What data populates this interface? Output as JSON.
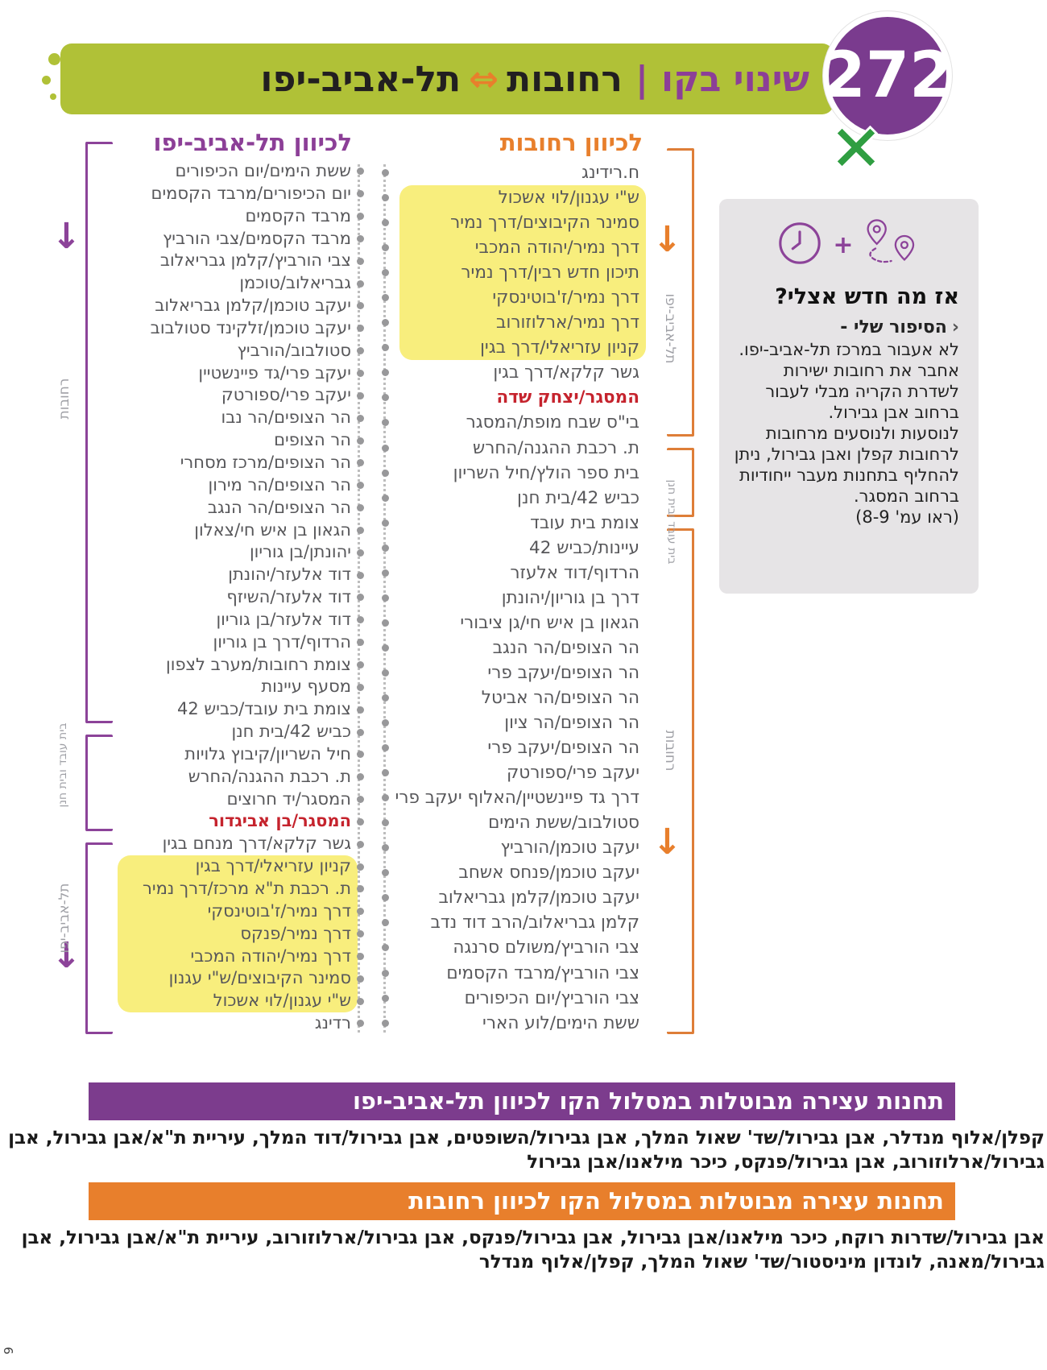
{
  "badge": {
    "line_number": "272"
  },
  "header": {
    "change_label": "שינוי בקו",
    "pipe": "|",
    "route_from": "רחובות",
    "arrow": "⇔",
    "route_to": "תל-אביב-יפו"
  },
  "columns": {
    "to_telaviv": {
      "title": "לכיוון תל-אביב-יפו",
      "stops": [
        {
          "name": "ששת הימים/יום הכיפורים"
        },
        {
          "name": "יום הכיפורים/מרבד הקסמים"
        },
        {
          "name": "מרבד הקסמים"
        },
        {
          "name": "מרבד הקסמים/צבי הורביץ"
        },
        {
          "name": "צבי הורביץ/קלמן גבריאלוב"
        },
        {
          "name": "גבריאלוב/טוכמן"
        },
        {
          "name": "יעקב טוכמן/קלמן גבריאלוב"
        },
        {
          "name": "יעקב טוכמן/זלקינד סטולבוב"
        },
        {
          "name": "סטולבוב/הורביץ"
        },
        {
          "name": "יעקב פרי/גד פיינשטיין"
        },
        {
          "name": "יעקב פרי/ספורטק"
        },
        {
          "name": "הר הצופים/הר נבו"
        },
        {
          "name": "הר הצופים"
        },
        {
          "name": "הר הצופים/מרכז מסחרי"
        },
        {
          "name": "הר הצופים/הר מירון"
        },
        {
          "name": "הר הצופים/הר הנגב"
        },
        {
          "name": "הגאון בן איש חי/צאלון"
        },
        {
          "name": "יהונתן/בן גוריון"
        },
        {
          "name": "דוד אלעזר/יהונתן"
        },
        {
          "name": "דוד אלעזר/השיזף"
        },
        {
          "name": "דוד אלעזר/בן גוריון"
        },
        {
          "name": "הרדוף/דרך בן גוריון"
        },
        {
          "name": "צומת רחובות/מערב לצפון"
        },
        {
          "name": "מסעף עיינות"
        },
        {
          "name": "צומת בית עובד/כביש 42"
        },
        {
          "name": "כביש 42/בית חנן"
        },
        {
          "name": "חיל השריון/קיבוץ גלויות"
        },
        {
          "name": "ת. רכבת ההגנה/החרש"
        },
        {
          "name": "המסגר/יד חרוצים"
        },
        {
          "name": "המסגר/בן אביגדור",
          "red": true
        },
        {
          "name": "גשר קלקא/דרך מנחם בגין"
        },
        {
          "name": "קניון עזריאלי/דרך בגין",
          "hl": true
        },
        {
          "name": "ת. רכבת ת\"א מרכז/דרך נמיר",
          "hl": true
        },
        {
          "name": "דרך נמיר/ז'בוטינסקי",
          "hl": true
        },
        {
          "name": "דרך נמיר/פנקס",
          "hl": true
        },
        {
          "name": "דרך נמיר/יהודה המכבי",
          "hl": true
        },
        {
          "name": "סמינר הקיבוצים/ש\"י עגנון",
          "hl": true
        },
        {
          "name": "ש\"י עגנון/לוי אשכול",
          "hl": true
        },
        {
          "name": "רדינג"
        }
      ]
    },
    "to_rehovot": {
      "title": "לכיוון רחובות",
      "stops": [
        {
          "name": "ח.רידינג"
        },
        {
          "name": "ש\"י עגנון/לוי אשכול",
          "hl": true
        },
        {
          "name": "סמינר הקיבוצים/דרך נמיר",
          "hl": true
        },
        {
          "name": "דרך נמיר/יהודה המכבי",
          "hl": true
        },
        {
          "name": "תיכון חדש רבין/דרך נמיר",
          "hl": true
        },
        {
          "name": "דרך נמיר/ז'בוטינסקי",
          "hl": true
        },
        {
          "name": "דרך נמיר/ארלוזורוב",
          "hl": true
        },
        {
          "name": "קניון עזריאלי/דרך בגין",
          "hl": true
        },
        {
          "name": "גשר קלקא/דרך בגין"
        },
        {
          "name": "המסגר/יצחק שדה",
          "red": true
        },
        {
          "name": "בי\"ס שבח מופת/המסגר"
        },
        {
          "name": "ת. רכבת ההגנה/החרש"
        },
        {
          "name": "בית ספר הולץ/חיל השריון"
        },
        {
          "name": "כביש 42/בית חנן"
        },
        {
          "name": "צומת בית עובד"
        },
        {
          "name": "עיינות/כביש 42"
        },
        {
          "name": "הרדוף/דוד אלעזר"
        },
        {
          "name": "דרך בן גוריון/יהונתן"
        },
        {
          "name": "הגאון בן איש חי/גן ציבורי"
        },
        {
          "name": "הר הצופים/הר הנגב"
        },
        {
          "name": "הר הצופים/יעקב פרי"
        },
        {
          "name": "הר הצופים/הר אביטל"
        },
        {
          "name": "הר הצופים/הר ציון"
        },
        {
          "name": "הר הצופים/יעקב פרי"
        },
        {
          "name": "יעקב פרי/ספורטק"
        },
        {
          "name": "דרך גד פיינשטיין/האלוף יעקב פרי"
        },
        {
          "name": "סטולבוב/ששת הימים"
        },
        {
          "name": "יעקב טוכמן/הורביץ"
        },
        {
          "name": "יעקב טוכמן/פנחס אשחב"
        },
        {
          "name": "יעקב טוכמן/קלמן גבריאלוב"
        },
        {
          "name": "קלמן גבריאלוב/הרב דוד נדב"
        },
        {
          "name": "צבי הורביץ/משולם סרנגה"
        },
        {
          "name": "צבי הורביץ/מרבד הקסמים"
        },
        {
          "name": "צבי הורביץ/יום הכיפורים"
        },
        {
          "name": "ששת הימים/לוע הארי"
        }
      ]
    }
  },
  "side_labels": {
    "left": [
      "רחובות",
      "בית עובד ובית חנן",
      "תל-אביב-יפו"
    ],
    "right": [
      "תל-אביב-יפו",
      "בית עובד ובית חנן",
      "רחובות"
    ]
  },
  "info_box": {
    "heading": "אז מה חדש אצלי?",
    "bullet": "‹",
    "sub_heading": "הסיפור שלי -",
    "paragraphs": [
      "לא אעבור במרכז תל-אביב-יפו. אחבר את רחובות ישירות לשדרת הקריה מבלי לעבור ברחוב אבן גבירול.",
      "לנוסעות ולנוסעים מרחובות לרחובות קפלן ואבן גבירול, ניתן להחליף בתחנות מעבר ייחודיות ברחוב המסגר.",
      "(ראו עמ' 8-9)"
    ]
  },
  "cancelled_telaviv": {
    "banner": "תחנות עצירה מבוטלות במסלול הקו לכיוון תל-אביב-יפו",
    "stops_text": "קפלן/אלוף מנדלר, אבן גבירול/שד' שאול המלך, אבן גבירול/השופטים, אבן גבירול/דוד המלך, עיריית ת\"א/אבן גבירול, אבן גבירול/ארלוזורוב, אבן גבירול/פנקס, כיכר מילאנו/אבן גבירול"
  },
  "cancelled_rehovot": {
    "banner": "תחנות עצירה מבוטלות במסלול הקו לכיוון רחובות",
    "stops_text": "אבן גבירול/שדרות רוקח, כיכר מילאנו/אבן גבירול, אבן גבירול/פנקס, אבן גבירול/ארלוזורוב, עיריית ת\"א/אבן גבירול, אבן גבירול/מאנה, לונדון מיניסטור/שד' שאול המלך, קפלן/אלוף מנדלר"
  },
  "page_number": "9",
  "colors": {
    "green": "#b0c137",
    "purple": "#8c3f97",
    "badge_purple": "#7a3b8e",
    "orange": "#e87f2c",
    "highlight_yellow": "#f8ee7d",
    "red_stop": "#c5232d"
  }
}
